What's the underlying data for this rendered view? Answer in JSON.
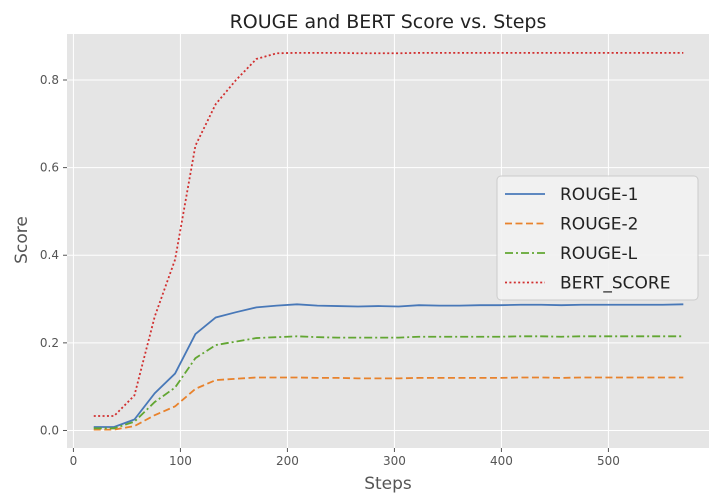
{
  "chart_data": {
    "type": "line",
    "title": "ROUGE and BERT Score vs. Steps",
    "xlabel": "Steps",
    "ylabel": "Score",
    "xlim": [
      -6,
      594
    ],
    "ylim": [
      -0.04,
      0.905
    ],
    "xticks": [
      0,
      100,
      200,
      300,
      400,
      500
    ],
    "yticks": [
      0.0,
      0.2,
      0.4,
      0.6,
      0.8
    ],
    "xtick_labels": [
      "0",
      "100",
      "200",
      "300",
      "400",
      "500"
    ],
    "ytick_labels": [
      "0.0",
      "0.2",
      "0.4",
      "0.6",
      "0.8"
    ],
    "grid": true,
    "legend_position": "center-right",
    "x": [
      19,
      38,
      57,
      76,
      95,
      114,
      133,
      152,
      171,
      190,
      209,
      228,
      247,
      266,
      285,
      304,
      323,
      342,
      361,
      380,
      399,
      418,
      437,
      456,
      475,
      494,
      513,
      532,
      551,
      570
    ],
    "series": [
      {
        "name": "ROUGE-1",
        "color": "#4878b8",
        "dash": "solid",
        "values": [
          0.008,
          0.008,
          0.025,
          0.085,
          0.13,
          0.22,
          0.258,
          0.27,
          0.281,
          0.285,
          0.288,
          0.285,
          0.284,
          0.283,
          0.284,
          0.283,
          0.286,
          0.285,
          0.285,
          0.286,
          0.286,
          0.287,
          0.287,
          0.286,
          0.287,
          0.287,
          0.287,
          0.287,
          0.287,
          0.288
        ]
      },
      {
        "name": "ROUGE-2",
        "color": "#e8822c",
        "dash": "dashed",
        "values": [
          0.002,
          0.002,
          0.01,
          0.035,
          0.055,
          0.095,
          0.115,
          0.118,
          0.121,
          0.121,
          0.121,
          0.12,
          0.12,
          0.119,
          0.119,
          0.119,
          0.12,
          0.12,
          0.12,
          0.12,
          0.12,
          0.121,
          0.121,
          0.12,
          0.121,
          0.121,
          0.121,
          0.121,
          0.121,
          0.121
        ]
      },
      {
        "name": "ROUGE-L",
        "color": "#62a632",
        "dash": "dashdot",
        "values": [
          0.005,
          0.005,
          0.02,
          0.065,
          0.098,
          0.165,
          0.195,
          0.203,
          0.211,
          0.213,
          0.215,
          0.213,
          0.212,
          0.212,
          0.212,
          0.212,
          0.214,
          0.214,
          0.214,
          0.214,
          0.214,
          0.215,
          0.215,
          0.214,
          0.215,
          0.215,
          0.215,
          0.215,
          0.215,
          0.215
        ]
      },
      {
        "name": "BERT_SCORE",
        "color": "#d12f2f",
        "dash": "dotted",
        "values": [
          0.033,
          0.033,
          0.08,
          0.26,
          0.39,
          0.65,
          0.745,
          0.8,
          0.848,
          0.861,
          0.862,
          0.862,
          0.862,
          0.861,
          0.861,
          0.861,
          0.862,
          0.862,
          0.862,
          0.862,
          0.862,
          0.862,
          0.862,
          0.862,
          0.862,
          0.862,
          0.862,
          0.862,
          0.862,
          0.862
        ]
      }
    ]
  }
}
